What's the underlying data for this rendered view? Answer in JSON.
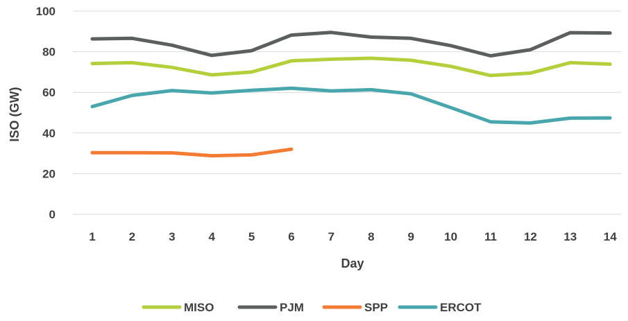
{
  "chart_data": {
    "type": "line",
    "xlabel": "Day",
    "ylabel": "ISO (GW)",
    "ylim": [
      0,
      100
    ],
    "yticks": [
      0,
      20,
      40,
      60,
      80,
      100
    ],
    "grid": true,
    "legend": "bottom",
    "x": [
      1,
      2,
      3,
      4,
      5,
      6,
      7,
      8,
      9,
      10,
      11,
      12,
      13,
      14
    ],
    "series": [
      {
        "name": "MISO",
        "color": "#b3cf3c",
        "values": [
          74.2,
          74.6,
          72.3,
          68.6,
          70.0,
          75.5,
          76.3,
          76.8,
          75.8,
          72.8,
          68.3,
          69.5,
          74.6,
          73.9
        ]
      },
      {
        "name": "PJM",
        "color": "#5b5f5e",
        "values": [
          86.3,
          86.6,
          83.2,
          78.2,
          80.5,
          88.2,
          89.5,
          87.2,
          86.6,
          83.0,
          78.0,
          81.0,
          89.4,
          89.2
        ]
      },
      {
        "name": "SPP",
        "color": "#f47b34",
        "values": [
          30.3,
          30.3,
          30.2,
          28.8,
          29.2,
          32.0,
          null,
          null,
          null,
          null,
          null,
          null,
          null,
          null
        ]
      },
      {
        "name": "ERCOT",
        "color": "#4aa6ad",
        "values": [
          53.0,
          58.5,
          60.9,
          59.7,
          61.0,
          62.0,
          60.7,
          61.3,
          59.3,
          52.5,
          45.5,
          44.9,
          47.3,
          47.4
        ]
      }
    ]
  }
}
